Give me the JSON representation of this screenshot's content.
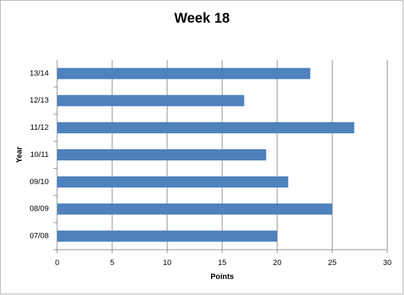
{
  "chart_data": {
    "type": "barh",
    "title": "Week 18",
    "x_label": "Points",
    "y_label": "Year",
    "categories": [
      "07/08",
      "08/09",
      "09/10",
      "10/11",
      "11/12",
      "12/13",
      "13/14"
    ],
    "values": [
      20,
      25,
      21,
      19,
      27,
      17,
      23
    ],
    "color": "#4f81bd",
    "xlim": [
      0,
      30
    ],
    "xticks": [
      0,
      5,
      10,
      15,
      20,
      25,
      30
    ],
    "grid": true
  }
}
